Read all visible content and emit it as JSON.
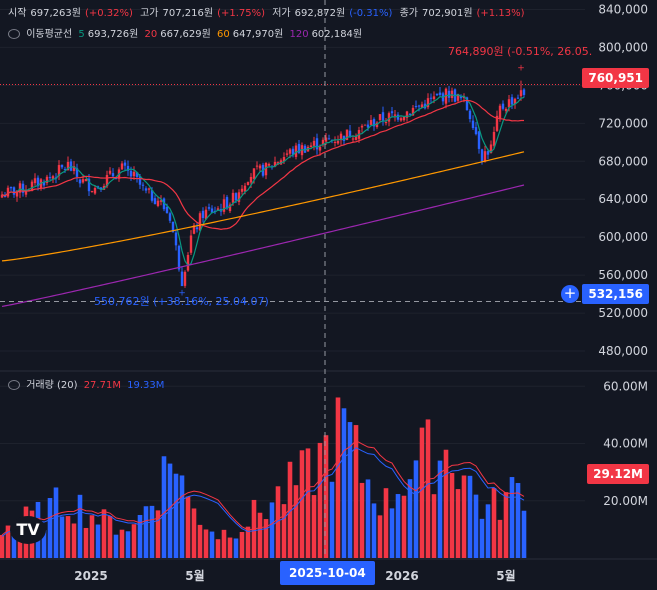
{
  "legend": {
    "open_label": "시작",
    "open_value": "697,263원",
    "open_change": "(+0.32%)",
    "high_label": "고가",
    "high_value": "707,216원",
    "high_change": "(+1.75%)",
    "low_label": "저가",
    "low_value": "692,872원",
    "low_change": "(-0.31%)",
    "close_label": "종가",
    "close_value": "702,901원",
    "close_change": "(+1.13%)"
  },
  "ma_legend": {
    "title": "이동평균선",
    "ma5_label": "5",
    "ma5_value": "693,726원",
    "ma20_label": "20",
    "ma20_value": "667,629원",
    "ma60_label": "60",
    "ma60_value": "647,970원",
    "ma120_label": "120",
    "ma120_value": "602,184원"
  },
  "volume_legend": {
    "title": "거래량 (20)",
    "value1": "27.71M",
    "value2": "19.33M"
  },
  "price_axis": [
    "840,000",
    "800,000",
    "760,000",
    "720,000",
    "680,000",
    "640,000",
    "600,000",
    "560,000",
    "520,000",
    "480,000"
  ],
  "volume_axis": [
    "60.00M",
    "40.00M",
    "20.00M"
  ],
  "x_axis": [
    "2025",
    "5월",
    "2026",
    "5월"
  ],
  "crosshair": {
    "date": "2025-10-04",
    "price": "532,156"
  },
  "last_price_tag": "760,951",
  "last_volume_tag": "29.12M",
  "high_annotation": "764,890원 (-0.51%, 26.05.",
  "low_annotation": "550,762원 (+38.16%, 25.04.07)",
  "logo_text": "TV",
  "colors": {
    "up": "#f23645",
    "down": "#2962ff",
    "ma5": "#089981",
    "ma20": "#f23645",
    "ma60": "#ff9800",
    "ma120": "#9c27b0",
    "background": "#131722"
  },
  "chart_data": {
    "type": "candlestick",
    "price_range": [
      460000,
      850000
    ],
    "volume_range": [
      0,
      65000000
    ],
    "candles_close_anchors": [
      [
        0,
        645000
      ],
      [
        8,
        652000
      ],
      [
        16,
        663000
      ],
      [
        22,
        676000
      ],
      [
        26,
        660000
      ],
      [
        31,
        652000
      ],
      [
        35,
        662000
      ],
      [
        40,
        672000
      ],
      [
        44,
        663000
      ],
      [
        48,
        646000
      ],
      [
        52,
        640000
      ],
      [
        56,
        622000
      ],
      [
        58,
        588000
      ],
      [
        60,
        555000
      ],
      [
        63,
        600000
      ],
      [
        67,
        625000
      ],
      [
        72,
        630000
      ],
      [
        77,
        640000
      ],
      [
        82,
        665000
      ],
      [
        88,
        672000
      ],
      [
        95,
        688000
      ],
      [
        101,
        695000
      ],
      [
        107,
        700000
      ],
      [
        113,
        706000
      ],
      [
        119,
        713000
      ],
      [
        125,
        723000
      ],
      [
        131,
        728000
      ],
      [
        137,
        735000
      ],
      [
        143,
        744000
      ],
      [
        149,
        752000
      ],
      [
        154,
        743000
      ],
      [
        157,
        722000
      ],
      [
        160,
        686000
      ],
      [
        163,
        694000
      ],
      [
        166,
        735000
      ],
      [
        170,
        745000
      ],
      [
        173,
        751000
      ]
    ],
    "ma_end_values": {
      "ma5": 745000,
      "ma20": 730000,
      "ma60": 690000,
      "ma120": 655000
    },
    "volume_peaks": [
      [
        0,
        12000000
      ],
      [
        14,
        17000000
      ],
      [
        22,
        23000000
      ],
      [
        34,
        14000000
      ],
      [
        44,
        12000000
      ],
      [
        58,
        41000000
      ],
      [
        62,
        21000000
      ],
      [
        72,
        9000000
      ],
      [
        80,
        13000000
      ],
      [
        90,
        22000000
      ],
      [
        103,
        33000000
      ],
      [
        108,
        42000000
      ],
      [
        114,
        51000000
      ],
      [
        120,
        33000000
      ],
      [
        128,
        21000000
      ],
      [
        137,
        37000000
      ],
      [
        143,
        40000000
      ],
      [
        150,
        41000000
      ],
      [
        161,
        18000000
      ],
      [
        169,
        24000000
      ],
      [
        174,
        29000000
      ]
    ],
    "volume_ma_end": [
      31000000,
      29500000
    ]
  }
}
